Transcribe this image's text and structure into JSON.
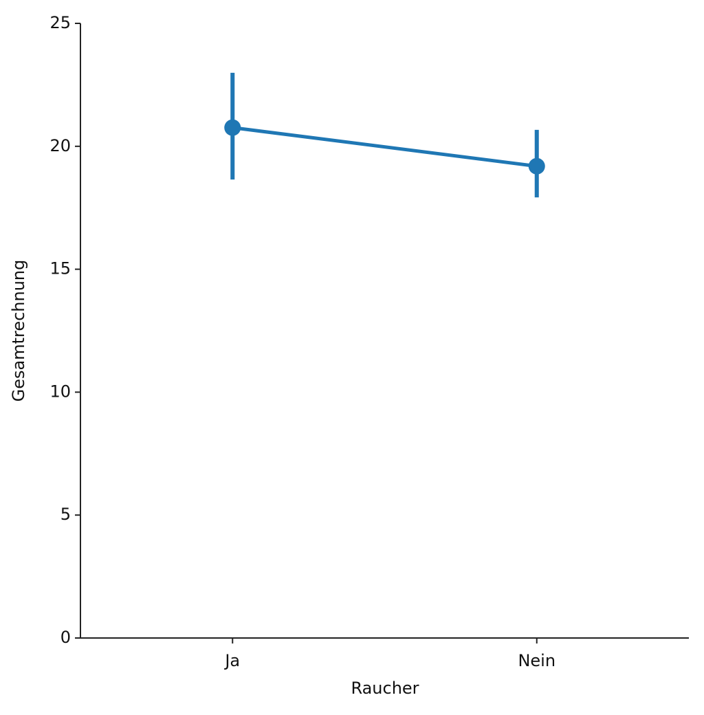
{
  "chart_data": {
    "type": "pointplot",
    "x_label": "Raucher",
    "y_label": "Gesamtrechnung",
    "categories": [
      "Ja",
      "Nein"
    ],
    "series": [
      {
        "color": "#1f77b4",
        "values": [
          20.76,
          19.19
        ],
        "error_low": [
          18.65,
          17.92
        ],
        "error_high": [
          22.99,
          20.67
        ]
      }
    ],
    "ylim": [
      0,
      25
    ],
    "yticks": [
      0,
      5,
      10,
      15,
      20,
      25
    ]
  }
}
